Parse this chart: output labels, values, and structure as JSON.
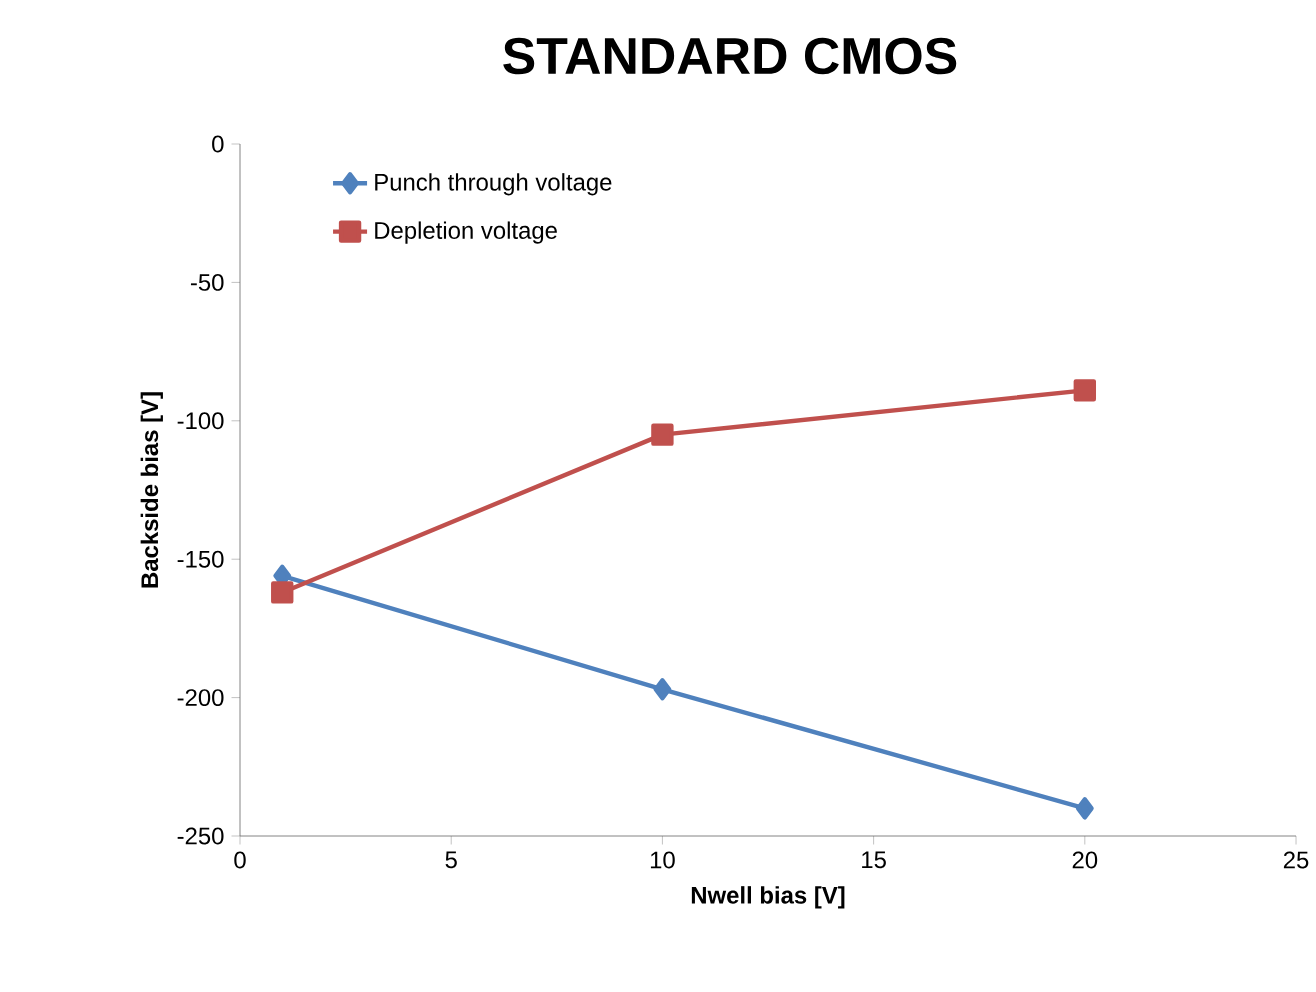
{
  "chart_data": {
    "type": "line",
    "title": "STANDARD CMOS",
    "xlabel": "Nwell bias [V]",
    "ylabel": "Backside bias [V]",
    "x": [
      1,
      10,
      20
    ],
    "series": [
      {
        "name": "Punch through voltage",
        "color": "#4f81bd",
        "values": [
          -156,
          -197,
          -240
        ],
        "marker": "diamond"
      },
      {
        "name": "Depletion voltage",
        "color": "#c0504d",
        "values": [
          -162,
          -105,
          -89
        ],
        "marker": "square"
      }
    ],
    "xlim": [
      0,
      25
    ],
    "ylim": [
      -250,
      0
    ],
    "xticks": [
      0,
      5,
      10,
      15,
      20,
      25
    ],
    "yticks": [
      -250,
      -200,
      -150,
      -100,
      -50,
      0
    ],
    "grid": false,
    "legend": "top left"
  }
}
